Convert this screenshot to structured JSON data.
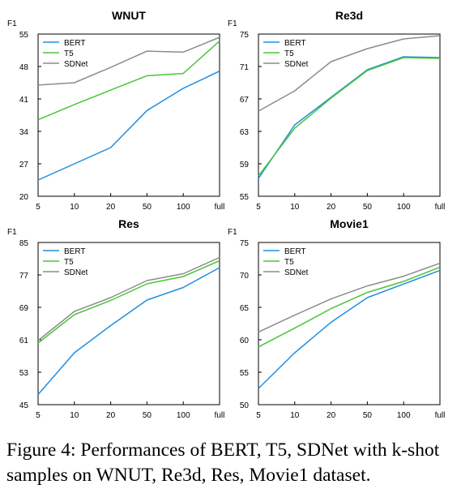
{
  "chart_data": [
    {
      "type": "line",
      "title": "WNUT",
      "ylabel": "F1",
      "xlabel": "",
      "categories": [
        "5",
        "10",
        "20",
        "50",
        "100",
        "full"
      ],
      "yticks": [
        20,
        27,
        34,
        41,
        48,
        55
      ],
      "ylim": [
        20,
        55
      ],
      "grid": false,
      "legend": "top-left",
      "series": [
        {
          "name": "BERT",
          "color": "#1f8fe0",
          "values": [
            23.5,
            27.0,
            30.5,
            38.5,
            43.3,
            47.0
          ]
        },
        {
          "name": "T5",
          "color": "#4cc43a",
          "values": [
            36.5,
            39.8,
            42.9,
            46.0,
            46.5,
            53.5
          ]
        },
        {
          "name": "SDNet",
          "color": "#8c8c8c",
          "values": [
            44.0,
            44.5,
            47.8,
            51.3,
            51.1,
            54.3
          ]
        }
      ]
    },
    {
      "type": "line",
      "title": "Re3d",
      "ylabel": "F1",
      "xlabel": "",
      "categories": [
        "5",
        "10",
        "20",
        "50",
        "100",
        "full"
      ],
      "yticks": [
        55,
        59,
        63,
        67,
        71,
        75
      ],
      "ylim": [
        55,
        75
      ],
      "grid": false,
      "legend": "top-left",
      "series": [
        {
          "name": "BERT",
          "color": "#1f8fe0",
          "values": [
            57.2,
            63.8,
            67.2,
            70.6,
            72.2,
            72.1
          ]
        },
        {
          "name": "T5",
          "color": "#4cc43a",
          "values": [
            57.5,
            63.4,
            67.1,
            70.5,
            72.1,
            72.0
          ]
        },
        {
          "name": "SDNet",
          "color": "#8c8c8c",
          "values": [
            65.5,
            68.0,
            71.6,
            73.2,
            74.4,
            74.8
          ]
        }
      ]
    },
    {
      "type": "line",
      "title": "Res",
      "ylabel": "F1",
      "xlabel": "",
      "categories": [
        "5",
        "10",
        "20",
        "50",
        "100",
        "full"
      ],
      "yticks": [
        45,
        53,
        61,
        69,
        77,
        85
      ],
      "ylim": [
        45,
        85
      ],
      "grid": false,
      "legend": "top-left",
      "series": [
        {
          "name": "BERT",
          "color": "#1f8fe0",
          "values": [
            47.5,
            57.8,
            64.5,
            70.8,
            73.9,
            78.8
          ]
        },
        {
          "name": "T5",
          "color": "#4cc43a",
          "values": [
            60.2,
            67.2,
            70.7,
            74.8,
            76.6,
            80.5
          ]
        },
        {
          "name": "SDNet",
          "color": "#8c8c8c",
          "values": [
            60.8,
            68.0,
            71.4,
            75.6,
            77.3,
            81.3
          ]
        }
      ]
    },
    {
      "type": "line",
      "title": "Movie1",
      "ylabel": "F1",
      "xlabel": "",
      "categories": [
        "5",
        "10",
        "20",
        "50",
        "100",
        "full"
      ],
      "yticks": [
        50,
        55,
        60,
        65,
        70,
        75
      ],
      "ylim": [
        50,
        75
      ],
      "grid": false,
      "legend": "top-left",
      "series": [
        {
          "name": "BERT",
          "color": "#1f8fe0",
          "values": [
            52.5,
            58.0,
            62.7,
            66.5,
            68.6,
            70.7
          ]
        },
        {
          "name": "T5",
          "color": "#4cc43a",
          "values": [
            58.9,
            61.8,
            64.8,
            67.3,
            69.0,
            71.2
          ]
        },
        {
          "name": "SDNet",
          "color": "#8c8c8c",
          "values": [
            61.2,
            63.8,
            66.3,
            68.3,
            69.8,
            71.8
          ]
        }
      ]
    }
  ],
  "caption": "Figure 4: Performances of BERT, T5, SDNet with k-shot samples on WNUT, Re3d, Res, Movie1 dataset."
}
